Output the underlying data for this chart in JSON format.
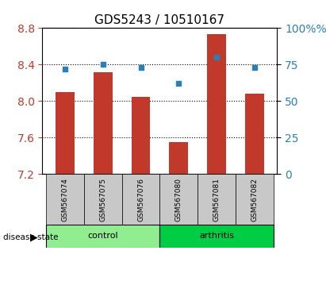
{
  "title": "GDS5243 / 10510167",
  "samples": [
    "GSM567074",
    "GSM567075",
    "GSM567076",
    "GSM567080",
    "GSM567081",
    "GSM567082"
  ],
  "groups": [
    "control",
    "control",
    "control",
    "arthritis",
    "arthritis",
    "arthritis"
  ],
  "red_values": [
    8.1,
    8.32,
    8.05,
    7.55,
    8.73,
    8.08
  ],
  "blue_values": [
    72,
    75,
    73,
    62,
    80,
    73
  ],
  "ylim_left": [
    7.2,
    8.8
  ],
  "ylim_right": [
    0,
    100
  ],
  "yticks_left": [
    7.2,
    7.6,
    8.0,
    8.4,
    8.8
  ],
  "yticks_right": [
    0,
    25,
    50,
    75,
    100
  ],
  "bar_color": "#c0392b",
  "dot_color": "#2980b9",
  "control_color": "#90EE90",
  "arthritis_color": "#00cc00",
  "label_bg_color": "#c8c8c8",
  "background_color": "#ffffff",
  "bar_bottom": 7.2,
  "bar_width": 0.5,
  "grid_dotted": true
}
